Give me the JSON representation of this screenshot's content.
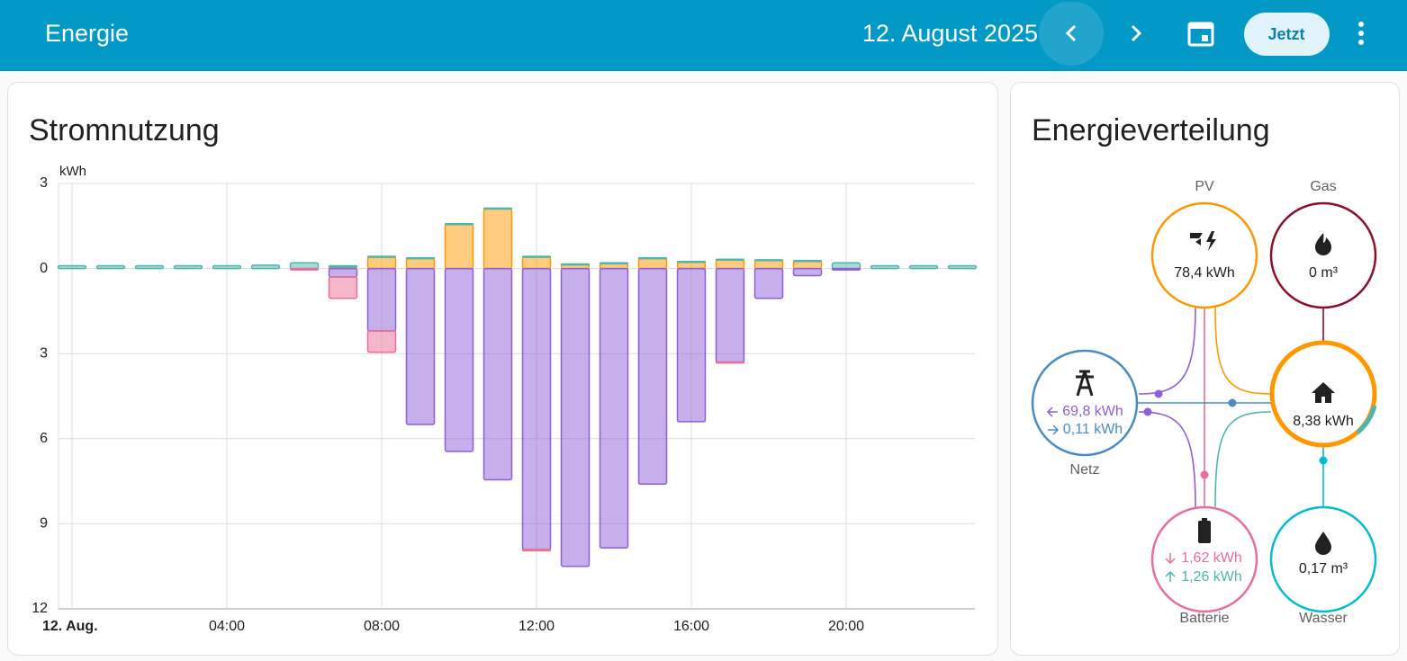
{
  "header": {
    "title": "Energie",
    "date": "12. August 2025",
    "now_button": "Jetzt"
  },
  "chart_data": {
    "type": "bar",
    "stacked": true,
    "title": "Stromnutzung",
    "y_label": "kWh",
    "categories": [
      "12. Aug.",
      null,
      null,
      null,
      "04:00",
      null,
      null,
      null,
      "08:00",
      null,
      null,
      null,
      "12:00",
      null,
      null,
      null,
      "16:00",
      null,
      null,
      null,
      "20:00",
      null,
      null,
      null
    ],
    "series": [
      {
        "color": "#ff9800",
        "values": [
          0,
          0,
          0,
          0,
          0,
          0,
          0,
          0.05,
          0.4,
          0.35,
          1.55,
          2.1,
          0.4,
          0.13,
          0.17,
          0.35,
          0.22,
          0.3,
          0.28,
          0.25,
          0,
          0,
          0,
          0
        ]
      },
      {
        "color": "#4db6ac",
        "values": [
          0.1,
          0.1,
          0.1,
          0.1,
          0.1,
          0.12,
          0.2,
          0.05,
          0.03,
          0.03,
          0.03,
          0.03,
          0.03,
          0.03,
          0.03,
          0.03,
          0.03,
          0.03,
          0.03,
          0.03,
          0.2,
          0.1,
          0.1,
          0.1
        ]
      },
      {
        "color": "#8e5fd6",
        "values": [
          0,
          0,
          0,
          0,
          0,
          0,
          0,
          -0.3,
          -2.2,
          -5.5,
          -6.45,
          -7.45,
          -9.9,
          -10.5,
          -9.85,
          -7.6,
          -5.4,
          -3.3,
          -1.05,
          -0.25,
          -0.05,
          0,
          0,
          0
        ]
      },
      {
        "color": "#e96f96",
        "values": [
          0,
          0,
          0,
          0,
          0,
          0,
          -0.05,
          -0.75,
          -0.75,
          0,
          0,
          0,
          -0.05,
          0,
          0,
          0,
          0,
          -0.03,
          0,
          0,
          0,
          0,
          0,
          0
        ]
      }
    ],
    "ylim": [
      -12,
      3
    ],
    "yticks": [
      3,
      0,
      {
        "value": -3,
        "label": "3"
      },
      {
        "value": -6,
        "label": "6"
      },
      {
        "value": -9,
        "label": "9"
      },
      {
        "value": -12,
        "label": "12"
      }
    ],
    "grid": true
  },
  "distribution": {
    "title": "Energieverteilung",
    "pv": {
      "label": "PV",
      "value": "78,4 kWh"
    },
    "gas": {
      "label": "Gas",
      "value": "0 m³"
    },
    "grid": {
      "label": "Netz",
      "import": "69,8 kWh",
      "export": "0,11 kWh"
    },
    "home": {
      "value": "8,38 kWh"
    },
    "battery": {
      "label": "Batterie",
      "in": "1,62 kWh",
      "out": "1,26 kWh"
    },
    "water": {
      "label": "Wasser",
      "value": "0,17 m³"
    }
  }
}
